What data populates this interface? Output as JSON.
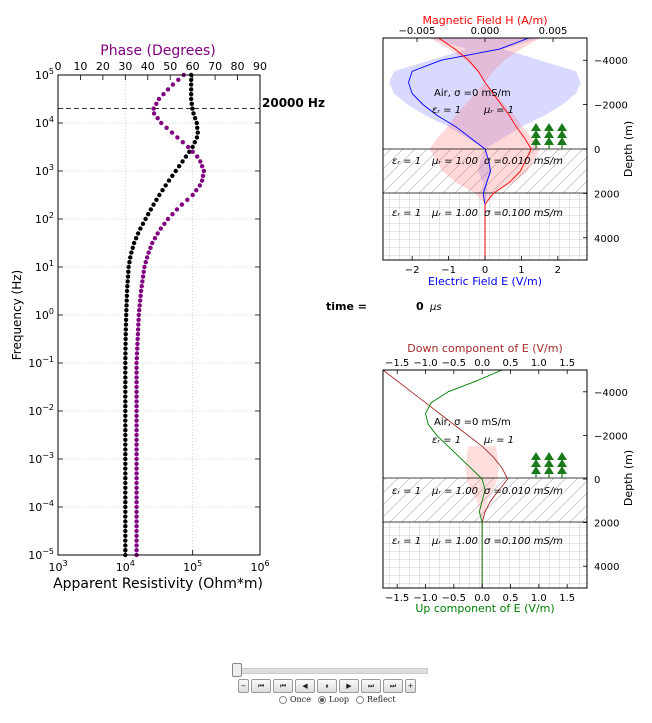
{
  "chart_data": [
    {
      "type": "scatter",
      "title": "Phase (Degrees)",
      "xlabel": "Apparent Resistivity (Ohm*m)",
      "ylabel": "Frequency (Hz)",
      "xscale": "log",
      "yscale": "log",
      "xlim": [
        1000,
        1000000
      ],
      "ylim": [
        1e-05,
        100000
      ],
      "x_ticks": [
        "10^3",
        "10^4",
        "10^5",
        "10^6"
      ],
      "y_ticks": [
        "10^-5",
        "10^-4",
        "10^-3",
        "10^-2",
        "10^-1",
        "10^0",
        "10^1",
        "10^2",
        "10^3",
        "10^4",
        "10^5"
      ],
      "top_axis_label": "Phase (Degrees)",
      "top_xlim": [
        0,
        90
      ],
      "top_ticks": [
        "0",
        "10",
        "20",
        "30",
        "40",
        "50",
        "60",
        "70",
        "80",
        "90"
      ],
      "grid": true,
      "marker_line_label": "20000 Hz",
      "marker_line_freq": 20000,
      "colors": {
        "resistivity": "#000000",
        "phase": "#800080",
        "phase_title": "#800080"
      },
      "series": [
        {
          "name": "",
          "quantity": "apparent resistivity",
          "log10_freq": [
            -5,
            -4.5,
            -4,
            -3.5,
            -3,
            -2.5,
            -2,
            -1.5,
            -1,
            -0.5,
            0,
            0.5,
            1,
            1.25,
            1.5,
            1.75,
            2,
            2.25,
            2.5,
            2.75,
            3,
            3.25,
            3.5,
            3.75,
            4,
            4.25,
            4.5,
            4.75,
            5
          ],
          "values": [
            10000,
            10000,
            10000,
            10000,
            10000,
            10000,
            10000,
            10000,
            10000,
            10100,
            10300,
            10600,
            11200,
            12000,
            13500,
            16000,
            20000,
            25000,
            32000,
            42000,
            56000,
            75000,
            100000,
            120000,
            115000,
            100000,
            95000,
            95000,
            95000
          ]
        },
        {
          "name": "",
          "quantity": "phase",
          "log10_freq": [
            -5,
            -4.5,
            -4,
            -3.5,
            -3,
            -2.5,
            -2,
            -1.5,
            -1,
            -0.5,
            0,
            0.5,
            1,
            1.25,
            1.5,
            1.75,
            2,
            2.25,
            2.5,
            2.75,
            3,
            3.25,
            3.5,
            3.75,
            4,
            4.25,
            4.5,
            4.75,
            5
          ],
          "values": [
            35,
            35,
            35,
            35,
            35,
            35,
            35,
            35,
            35,
            35.5,
            36,
            37,
            38.5,
            40,
            42,
            45,
            49,
            54,
            60,
            64,
            65,
            63,
            58,
            52,
            46,
            42,
            45,
            50,
            56
          ]
        }
      ]
    },
    {
      "type": "line",
      "title": "Magnetic Field H (A/m)",
      "xlabel": "Electric Field E (V/m)",
      "ylabel": "Depth (m)",
      "xlim": [
        -2.8,
        2.8
      ],
      "top_xlim": [
        -0.0075,
        0.0075
      ],
      "ylim": [
        5000,
        -5000
      ],
      "x_ticks": [
        "−2",
        "−1",
        "0",
        "1",
        "2"
      ],
      "top_ticks": [
        "−0.005",
        "0.000",
        "0.005"
      ],
      "depth_ticks": [
        "−4000",
        "−2000",
        "0",
        "2000",
        "4000"
      ],
      "annotations": {
        "air": "Air, σ =0 mS/m",
        "air_eps": "εᵣ = 1",
        "air_mu": "μᵣ = 1",
        "layer1_eps": "εᵣ = 1",
        "layer1_mu": "μᵣ = 1.00",
        "layer1_sigma": "σ =0.010 mS/m",
        "layer2_eps": "εᵣ = 1",
        "layer2_mu": "μᵣ = 1.00",
        "layer2_sigma": "σ =0.100 mS/m"
      },
      "colors": {
        "E": "#0000ff",
        "H": "#ff0000",
        "title": "#ff0000",
        "xlabel": "#0000ff"
      },
      "series": [
        {
          "name": "",
          "quantity": "E",
          "depth": [
            -5000,
            -4500,
            -4000,
            -3500,
            -3000,
            -2500,
            -2000,
            -1500,
            -1000,
            -500,
            0,
            500,
            1000,
            1500,
            2000,
            2500,
            3000,
            4000,
            5000
          ],
          "values": [
            1.2,
            0.4,
            -1.2,
            -2.0,
            -2.1,
            -2.0,
            -1.7,
            -1.3,
            -0.8,
            -0.4,
            0.0,
            0.1,
            0.15,
            0.05,
            -0.05,
            0.0,
            0.0,
            0.0,
            0.0
          ]
        },
        {
          "name": "",
          "quantity": "H",
          "depth": [
            -5000,
            -4500,
            -4000,
            -3500,
            -3000,
            -2500,
            -2000,
            -1500,
            -1000,
            -500,
            0,
            500,
            1000,
            1500,
            2000,
            2500,
            3000,
            4000,
            5000
          ],
          "values": [
            -0.0034,
            -0.0022,
            -0.0012,
            -0.0005,
            0.0,
            0.0006,
            0.0012,
            0.0018,
            0.0023,
            0.0029,
            0.0034,
            0.003,
            0.0026,
            0.0018,
            0.0006,
            0.0,
            0.0,
            0.0,
            0.0
          ]
        }
      ]
    },
    {
      "type": "line",
      "title": "Down component of E (V/m)",
      "xlabel": "Up component of E (V/m)",
      "ylabel": "Depth (m)",
      "xlim": [
        -1.75,
        1.85
      ],
      "ylim": [
        5000,
        -5000
      ],
      "x_ticks": [
        "−1.5",
        "−1.0",
        "−0.5",
        "0.0",
        "0.5",
        "1.0",
        "1.5"
      ],
      "top_ticks": [
        "−1.5",
        "−1.0",
        "−0.5",
        "0.0",
        "0.5",
        "1.0",
        "1.5"
      ],
      "depth_ticks": [
        "−4000",
        "−2000",
        "0",
        "2000",
        "4000"
      ],
      "annotations": {
        "air": "Air, σ =0 mS/m",
        "air_eps": "εᵣ = 1",
        "air_mu": "μᵣ = 1",
        "layer1_eps": "εᵣ = 1",
        "layer1_mu": "μᵣ = 1.00",
        "layer1_sigma": "σ =0.010 mS/m",
        "layer2_eps": "εᵣ = 1",
        "layer2_mu": "μᵣ = 1.00",
        "layer2_sigma": "σ =0.100 mS/m"
      },
      "colors": {
        "down": "#a52a2a",
        "up": "#008000",
        "title": "#a52a2a",
        "xlabel": "#008000"
      },
      "series": [
        {
          "name": "",
          "quantity": "down",
          "depth": [
            -5000,
            -4500,
            -4000,
            -3500,
            -3000,
            -2500,
            -2000,
            -1500,
            -1000,
            -500,
            0,
            500,
            1000,
            1500,
            2000,
            2500,
            3000,
            4000,
            5000
          ],
          "values": [
            -1.75,
            -1.5,
            -1.25,
            -1.0,
            -0.75,
            -0.5,
            -0.25,
            0.0,
            0.2,
            0.35,
            0.45,
            0.3,
            0.15,
            0.05,
            0.0,
            0.0,
            0.0,
            0.0,
            0.0
          ]
        },
        {
          "name": "",
          "quantity": "up",
          "depth": [
            -5000,
            -4500,
            -4000,
            -3500,
            -3000,
            -2500,
            -2000,
            -1500,
            -1000,
            -500,
            0,
            500,
            1000,
            1500,
            2000,
            2500,
            3000,
            4000,
            5000
          ],
          "values": [
            0.35,
            -0.1,
            -0.6,
            -0.9,
            -1.0,
            -0.95,
            -0.8,
            -0.6,
            -0.4,
            -0.2,
            0.0,
            0.05,
            0.0,
            -0.05,
            0.0,
            0.0,
            0.0,
            0.0,
            0.0
          ]
        }
      ]
    }
  ],
  "time_label": "time =",
  "time_value": "0",
  "time_unit": "μs",
  "animation": {
    "buttons": [
      "−",
      "⏮",
      "⏮",
      "◀",
      "⏸",
      "▶",
      "⏭",
      "⏭",
      "+"
    ],
    "radio_once": "Once",
    "radio_loop": "Loop",
    "radio_reflect": "Reflect",
    "selected": "Loop"
  }
}
